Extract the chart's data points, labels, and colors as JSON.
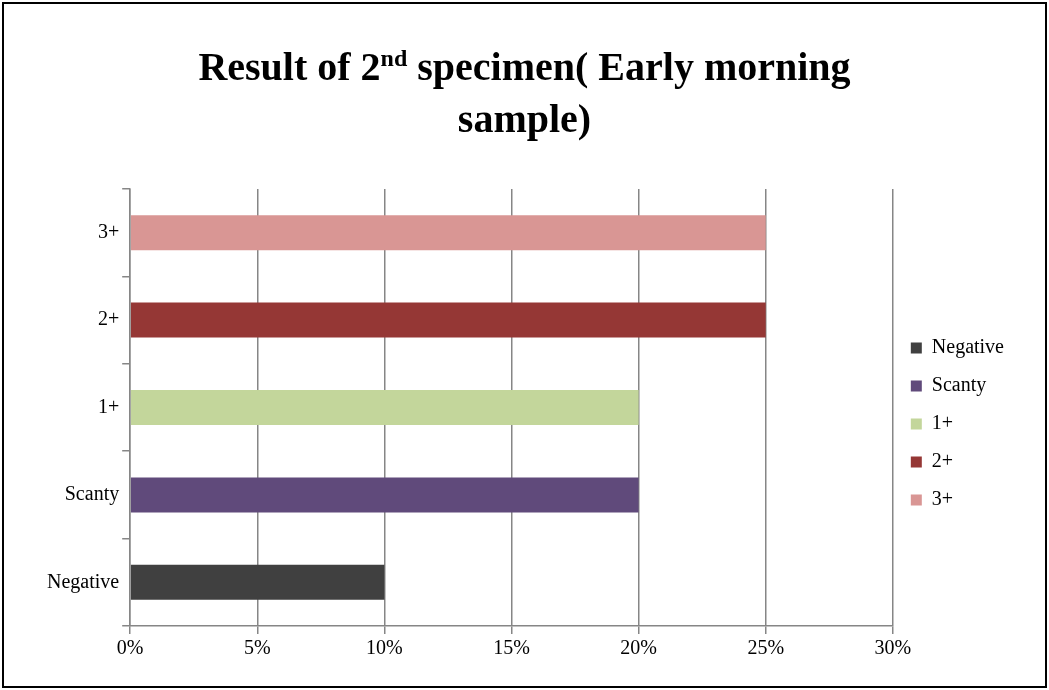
{
  "chart_data": {
    "type": "bar",
    "orientation": "horizontal",
    "stacked": true,
    "title": "Result of 2$^{nd}$ specimen( Early morning sample)",
    "categories": [
      "3+",
      "2+",
      "1+",
      "Scanty",
      "Negative"
    ],
    "series": [
      {
        "name": "Negative",
        "color": "#404040",
        "values": [
          null,
          null,
          null,
          null,
          10
        ]
      },
      {
        "name": "Scanty",
        "color": "#604a7b",
        "values": [
          null,
          null,
          null,
          20,
          null
        ]
      },
      {
        "name": "1+",
        "color": "#c3d69b",
        "values": [
          null,
          null,
          20,
          null,
          null
        ]
      },
      {
        "name": "2+",
        "color": "#953735",
        "values": [
          null,
          25,
          null,
          null,
          null
        ]
      },
      {
        "name": "3+",
        "color": "#d99694",
        "values": [
          25,
          null,
          null,
          null,
          null
        ]
      }
    ],
    "xlim": [
      0,
      30
    ],
    "xticks": [
      {
        "value": 0,
        "label": "0%"
      },
      {
        "value": 5,
        "label": "5%"
      },
      {
        "value": 10,
        "label": "10%"
      },
      {
        "value": 15,
        "label": "15%"
      },
      {
        "value": 20,
        "label": "20%"
      },
      {
        "value": 25,
        "label": "25%"
      },
      {
        "value": 30,
        "label": "30%"
      }
    ],
    "grid": "x",
    "legend": "right"
  }
}
